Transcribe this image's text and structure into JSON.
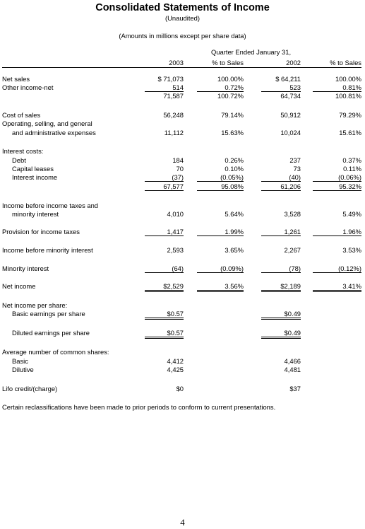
{
  "header": {
    "title": "Consolidated Statements of Income",
    "subtitle": "(Unaudited)",
    "units_note": "(Amounts in millions except per share data)",
    "period_header": "Quarter Ended January 31,",
    "col_2003": "2003",
    "col_pct1": "% to Sales",
    "col_2002": "2002",
    "col_pct2": "% to Sales"
  },
  "rows": {
    "net_sales": {
      "label": "Net sales",
      "v1": "$ 71,073",
      "p1": "100.00%",
      "v2": "$ 64,211",
      "p2": "100.00%"
    },
    "other_income": {
      "label": "Other income-net",
      "v1": "514",
      "p1": "0.72%",
      "v2": "523",
      "p2": "0.81%"
    },
    "subtotal1": {
      "v1": "71,587",
      "p1": "100.72%",
      "v2": "64,734",
      "p2": "100.81%"
    },
    "cost_of_sales": {
      "label": "Cost of sales",
      "v1": "56,248",
      "p1": "79.14%",
      "v2": "50,912",
      "p2": "79.29%"
    },
    "opex": {
      "label1": "Operating, selling, and general",
      "label2": "and administrative expenses",
      "v1": "11,112",
      "p1": "15.63%",
      "v2": "10,024",
      "p2": "15.61%"
    },
    "interest_costs": {
      "label": "Interest costs:"
    },
    "debt": {
      "label": "Debt",
      "v1": "184",
      "p1": "0.26%",
      "v2": "237",
      "p2": "0.37%"
    },
    "capital_leases": {
      "label": "Capital leases",
      "v1": "70",
      "p1": "0.10%",
      "v2": "73",
      "p2": "0.11%"
    },
    "interest_income": {
      "label": "Interest income",
      "v1": "(37)",
      "p1": "(0.05%)",
      "v2": "(40)",
      "p2": "(0.06%)"
    },
    "subtotal2": {
      "v1": "67,577",
      "p1": "95.08%",
      "v2": "61,206",
      "p2": "95.32%"
    },
    "income_before_taxes": {
      "label1": "Income before income taxes and",
      "label2": "minority interest",
      "v1": "4,010",
      "p1": "5.64%",
      "v2": "3,528",
      "p2": "5.49%"
    },
    "provision": {
      "label": "Provision for income taxes",
      "v1": "1,417",
      "p1": "1.99%",
      "v2": "1,261",
      "p2": "1.96%"
    },
    "income_before_minority": {
      "label": "Income before minority interest",
      "v1": "2,593",
      "p1": "3.65%",
      "v2": "2,267",
      "p2": "3.53%"
    },
    "minority_interest": {
      "label": "Minority interest",
      "v1": "(64)",
      "p1": "(0.09%)",
      "v2": "(78)",
      "p2": "(0.12%)"
    },
    "net_income": {
      "label": "Net income",
      "v1": "$2,529",
      "p1": "3.56%",
      "v2": "$2,189",
      "p2": "3.41%"
    },
    "nips_header": {
      "label": "Net income per share:"
    },
    "basic_eps": {
      "label": "Basic earnings per share",
      "v1": "$0.57",
      "v2": "$0.49"
    },
    "diluted_eps": {
      "label": "Diluted earnings per share",
      "v1": "$0.57",
      "v2": "$0.49"
    },
    "avg_shares": {
      "label": "Average number of common shares:"
    },
    "basic_shares": {
      "label": "Basic",
      "v1": "4,412",
      "v2": "4,466"
    },
    "dilutive_shares": {
      "label": "Dilutive",
      "v1": "4,425",
      "v2": "4,481"
    },
    "lifo": {
      "label": "Lifo credit/(charge)",
      "v1": "$0",
      "v2": "$37"
    }
  },
  "footnote": "Certain reclassifications have been made to prior periods to conform to current presentations.",
  "page_number": "4"
}
